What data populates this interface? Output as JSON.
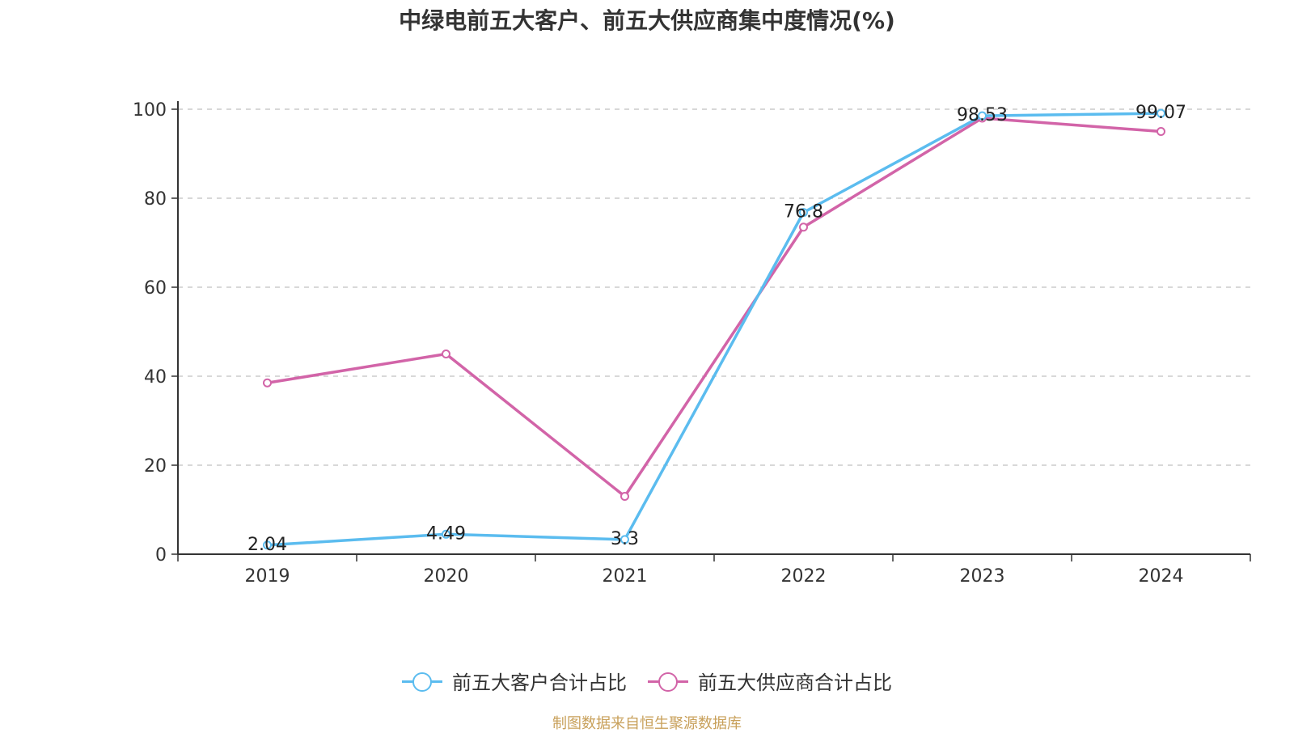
{
  "title": "中绿电前五大客户、前五大供应商集中度情况(%)",
  "source_note": "制图数据来自恒生聚源数据库",
  "chart_data": {
    "type": "line",
    "categories": [
      "2019",
      "2020",
      "2021",
      "2022",
      "2023",
      "2024"
    ],
    "ylim": [
      0,
      100
    ],
    "yticks": [
      0,
      20,
      40,
      60,
      80,
      100
    ],
    "grid": "horizontal-dashed",
    "legend_position": "bottom",
    "series": [
      {
        "name": "前五大客户合计占比",
        "color": "#5bbcef",
        "values": [
          2.04,
          4.49,
          3.3,
          76.8,
          98.53,
          99.07
        ],
        "labels": [
          "2.04",
          "4.49",
          "3.3",
          "76.8",
          "98.53",
          "99.07"
        ]
      },
      {
        "name": "前五大供应商合计占比",
        "color": "#d264a8",
        "values": [
          38.5,
          45,
          13,
          73.5,
          98,
          95
        ],
        "labels": []
      }
    ]
  }
}
